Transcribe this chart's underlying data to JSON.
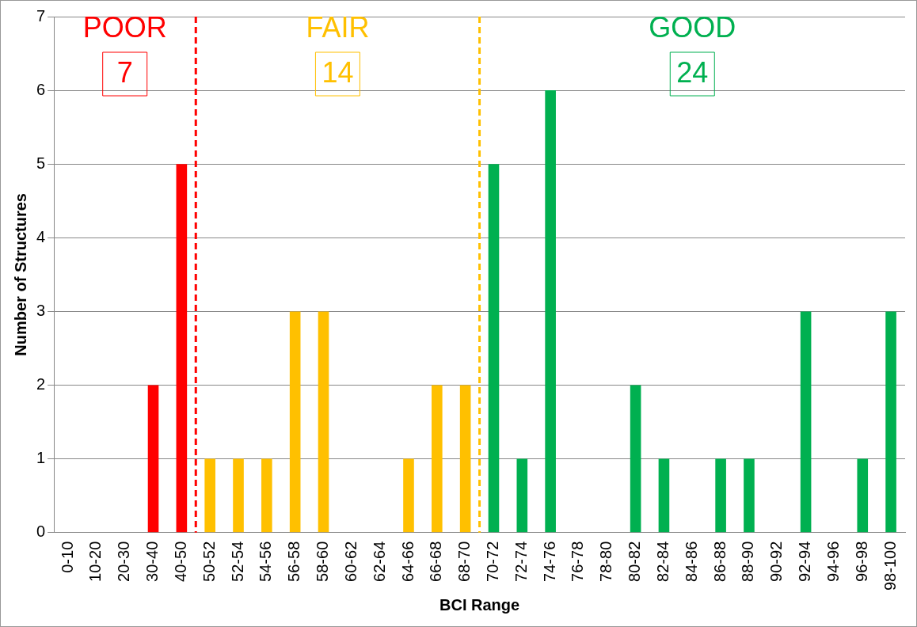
{
  "chart_data": {
    "type": "bar",
    "xlabel": "BCI Range",
    "ylabel": "Number of Structures",
    "categories": [
      "0-10",
      "10-20",
      "20-30",
      "30-40",
      "40-50",
      "50-52",
      "52-54",
      "54-56",
      "56-58",
      "58-60",
      "60-62",
      "62-64",
      "64-66",
      "66-68",
      "68-70",
      "70-72",
      "72-74",
      "74-76",
      "76-78",
      "78-80",
      "80-82",
      "82-84",
      "84-86",
      "86-88",
      "88-90",
      "90-92",
      "92-94",
      "94-96",
      "96-98",
      "98-100"
    ],
    "values": [
      0,
      0,
      0,
      2,
      5,
      1,
      1,
      1,
      3,
      3,
      0,
      0,
      1,
      2,
      2,
      5,
      1,
      6,
      0,
      0,
      2,
      1,
      0,
      1,
      1,
      0,
      3,
      0,
      1,
      3
    ],
    "colors": [
      "#ff0000",
      "#ff0000",
      "#ff0000",
      "#ff0000",
      "#ff0000",
      "#ffc000",
      "#ffc000",
      "#ffc000",
      "#ffc000",
      "#ffc000",
      "#ffc000",
      "#ffc000",
      "#ffc000",
      "#ffc000",
      "#ffc000",
      "#00b050",
      "#00b050",
      "#00b050",
      "#00b050",
      "#00b050",
      "#00b050",
      "#00b050",
      "#00b050",
      "#00b050",
      "#00b050",
      "#00b050",
      "#00b050",
      "#00b050",
      "#00b050",
      "#00b050"
    ],
    "ylim": [
      0,
      7
    ],
    "yticks": [
      0,
      1,
      2,
      3,
      4,
      5,
      6,
      7
    ],
    "grid": "y",
    "legend": false,
    "ref_lines": [
      {
        "axis": "x",
        "value": "50-52",
        "color": "#ff0000",
        "line_style": "dashed"
      },
      {
        "axis": "x",
        "value": "70-72",
        "color": "#ffc000",
        "line_style": "dashed"
      }
    ],
    "annotations": [
      "POOR",
      "7",
      "FAIR",
      "14",
      "GOOD",
      "24"
    ]
  }
}
